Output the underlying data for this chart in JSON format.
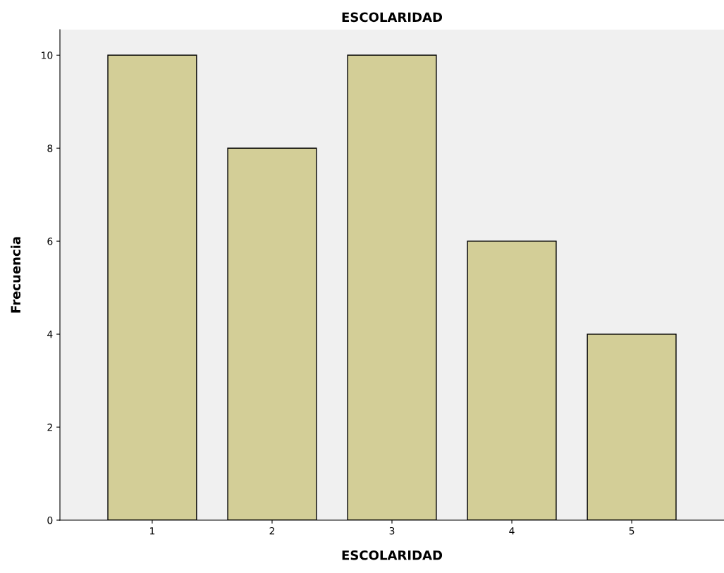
{
  "chart_data": {
    "type": "bar",
    "title": "ESCOLARIDAD",
    "xlabel": "ESCOLARIDAD",
    "ylabel": "Frecuencia",
    "categories": [
      "1",
      "2",
      "3",
      "4",
      "5"
    ],
    "values": [
      10,
      8,
      10,
      6,
      4
    ],
    "color": "#d3ce97",
    "ylim": [
      0,
      10.55
    ],
    "yticks": [
      0,
      2,
      4,
      6,
      8,
      10
    ],
    "grid": false,
    "legend": false
  }
}
